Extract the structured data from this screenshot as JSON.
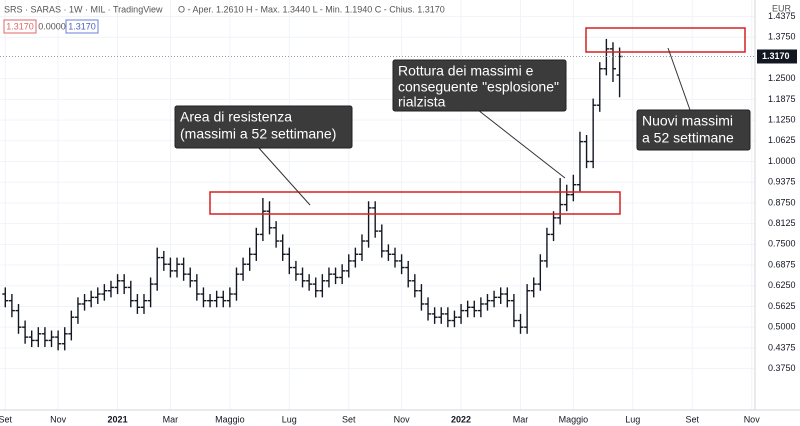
{
  "header": {
    "symbol": "SRS · SARAS · 1W · MIL · TradingView",
    "ohlc": "O - Aper. 1.2610 H - Max. 1.3440 L - Min. 1.1940 C - Chius. 1.3170",
    "badges": [
      "1.3170",
      "0.0000",
      "1.3170"
    ]
  },
  "chart_data": {
    "type": "ohlc",
    "currency": "EUR",
    "last_price": {
      "value": 1.317,
      "label": "1.3170"
    },
    "color": "#131722",
    "x": [
      0,
      1,
      2,
      3,
      4,
      5,
      6,
      7,
      8,
      9,
      10,
      11,
      12,
      13,
      14,
      15,
      16,
      17,
      18,
      19,
      20,
      21,
      22,
      23,
      24,
      25,
      26,
      27,
      28,
      29,
      30,
      31,
      32,
      33,
      34,
      35,
      36,
      37,
      38,
      39,
      40,
      41,
      42,
      43,
      44,
      45,
      46,
      47,
      48,
      49,
      50,
      51,
      52,
      53,
      54,
      55,
      56,
      57,
      58,
      59,
      60,
      61,
      62,
      63,
      64,
      65,
      66,
      67,
      68,
      69,
      70,
      71,
      72,
      73,
      74,
      75,
      76,
      77,
      78,
      79,
      80,
      81,
      82,
      83,
      84,
      85,
      86,
      87,
      88,
      89,
      90,
      91,
      92,
      93
    ],
    "open": [
      0.6,
      0.58,
      0.55,
      0.5,
      0.47,
      0.46,
      0.48,
      0.46,
      0.47,
      0.45,
      0.48,
      0.53,
      0.57,
      0.58,
      0.59,
      0.6,
      0.61,
      0.62,
      0.64,
      0.62,
      0.58,
      0.56,
      0.58,
      0.63,
      0.71,
      0.69,
      0.67,
      0.69,
      0.66,
      0.64,
      0.6,
      0.58,
      0.58,
      0.59,
      0.58,
      0.6,
      0.66,
      0.69,
      0.72,
      0.78,
      0.85,
      0.8,
      0.76,
      0.72,
      0.68,
      0.66,
      0.64,
      0.63,
      0.61,
      0.64,
      0.66,
      0.65,
      0.67,
      0.7,
      0.72,
      0.76,
      0.86,
      0.79,
      0.73,
      0.72,
      0.7,
      0.68,
      0.64,
      0.61,
      0.57,
      0.54,
      0.53,
      0.54,
      0.52,
      0.53,
      0.55,
      0.56,
      0.55,
      0.57,
      0.58,
      0.59,
      0.6,
      0.58,
      0.52,
      0.5,
      0.61,
      0.63,
      0.7,
      0.78,
      0.83,
      0.87,
      0.9,
      0.93,
      1.06,
      1.0,
      1.17,
      1.28,
      1.34,
      1.261
    ],
    "high": [
      0.62,
      0.6,
      0.57,
      0.52,
      0.49,
      0.5,
      0.5,
      0.49,
      0.49,
      0.5,
      0.55,
      0.59,
      0.6,
      0.61,
      0.62,
      0.63,
      0.64,
      0.66,
      0.66,
      0.64,
      0.6,
      0.6,
      0.65,
      0.74,
      0.73,
      0.71,
      0.71,
      0.71,
      0.68,
      0.66,
      0.62,
      0.6,
      0.61,
      0.61,
      0.62,
      0.68,
      0.71,
      0.74,
      0.8,
      0.89,
      0.88,
      0.82,
      0.78,
      0.74,
      0.7,
      0.68,
      0.66,
      0.65,
      0.66,
      0.68,
      0.68,
      0.69,
      0.72,
      0.74,
      0.78,
      0.88,
      0.88,
      0.81,
      0.75,
      0.74,
      0.72,
      0.7,
      0.66,
      0.63,
      0.59,
      0.56,
      0.56,
      0.56,
      0.55,
      0.57,
      0.58,
      0.58,
      0.59,
      0.6,
      0.61,
      0.62,
      0.62,
      0.6,
      0.54,
      0.63,
      0.65,
      0.72,
      0.8,
      0.85,
      0.95,
      0.93,
      0.96,
      1.09,
      1.08,
      1.19,
      1.3,
      1.37,
      1.36,
      1.344
    ],
    "low": [
      0.56,
      0.53,
      0.48,
      0.45,
      0.44,
      0.44,
      0.44,
      0.44,
      0.43,
      0.43,
      0.46,
      0.51,
      0.55,
      0.56,
      0.57,
      0.58,
      0.59,
      0.6,
      0.6,
      0.56,
      0.54,
      0.54,
      0.56,
      0.61,
      0.67,
      0.65,
      0.65,
      0.64,
      0.62,
      0.58,
      0.56,
      0.56,
      0.56,
      0.56,
      0.56,
      0.58,
      0.64,
      0.67,
      0.7,
      0.76,
      0.78,
      0.74,
      0.7,
      0.66,
      0.64,
      0.62,
      0.61,
      0.59,
      0.59,
      0.62,
      0.63,
      0.63,
      0.65,
      0.68,
      0.7,
      0.74,
      0.77,
      0.71,
      0.7,
      0.68,
      0.66,
      0.62,
      0.59,
      0.55,
      0.52,
      0.51,
      0.51,
      0.5,
      0.5,
      0.51,
      0.53,
      0.53,
      0.53,
      0.55,
      0.56,
      0.57,
      0.56,
      0.5,
      0.48,
      0.48,
      0.59,
      0.61,
      0.68,
      0.76,
      0.81,
      0.85,
      0.88,
      0.91,
      0.98,
      0.98,
      1.15,
      1.26,
      1.24,
      1.194
    ],
    "close": [
      0.58,
      0.55,
      0.5,
      0.47,
      0.46,
      0.48,
      0.46,
      0.47,
      0.45,
      0.48,
      0.53,
      0.57,
      0.58,
      0.59,
      0.6,
      0.61,
      0.62,
      0.64,
      0.62,
      0.58,
      0.56,
      0.58,
      0.63,
      0.71,
      0.69,
      0.67,
      0.69,
      0.66,
      0.64,
      0.6,
      0.58,
      0.58,
      0.59,
      0.58,
      0.6,
      0.66,
      0.69,
      0.72,
      0.78,
      0.85,
      0.8,
      0.76,
      0.72,
      0.68,
      0.66,
      0.64,
      0.63,
      0.61,
      0.64,
      0.66,
      0.65,
      0.67,
      0.7,
      0.72,
      0.76,
      0.86,
      0.79,
      0.73,
      0.72,
      0.7,
      0.68,
      0.64,
      0.61,
      0.57,
      0.54,
      0.53,
      0.54,
      0.52,
      0.53,
      0.55,
      0.56,
      0.55,
      0.57,
      0.58,
      0.59,
      0.6,
      0.58,
      0.52,
      0.5,
      0.61,
      0.63,
      0.7,
      0.78,
      0.83,
      0.87,
      0.9,
      0.93,
      1.06,
      1.0,
      1.17,
      1.28,
      1.34,
      1.28,
      1.317
    ],
    "xlim": [
      -0.8,
      113.5
    ],
    "xticks": [
      {
        "value": 0,
        "label": "Set"
      },
      {
        "value": 8,
        "label": "Nov"
      },
      {
        "value": 17,
        "label": "2021"
      },
      {
        "value": 25,
        "label": "Mar"
      },
      {
        "value": 34,
        "label": "Maggio"
      },
      {
        "value": 43,
        "label": "Lug"
      },
      {
        "value": 52,
        "label": "Set"
      },
      {
        "value": 60,
        "label": "Nov"
      },
      {
        "value": 69,
        "label": "2022"
      },
      {
        "value": 78,
        "label": "Mar"
      },
      {
        "value": 86,
        "label": "Maggio"
      },
      {
        "value": 95,
        "label": "Lug"
      },
      {
        "value": 104,
        "label": "Set"
      },
      {
        "value": 113,
        "label": "Nov"
      }
    ],
    "ylim": [
      0.25,
      1.4875
    ],
    "yticks": [
      {
        "value": 1.4375,
        "label": "1.4375"
      },
      {
        "value": 1.375,
        "label": "1.3750"
      },
      {
        "value": 1.25,
        "label": "1.2500"
      },
      {
        "value": 1.1875,
        "label": "1.1875"
      },
      {
        "value": 1.125,
        "label": "1.1250"
      },
      {
        "value": 1.0625,
        "label": "1.0625"
      },
      {
        "value": 1,
        "label": "1.0000"
      },
      {
        "value": 0.9375,
        "label": "0.9375"
      },
      {
        "value": 0.875,
        "label": "0.8750"
      },
      {
        "value": 0.8125,
        "label": "0.8125"
      },
      {
        "value": 0.75,
        "label": "0.7500"
      },
      {
        "value": 0.6875,
        "label": "0.6875"
      },
      {
        "value": 0.625,
        "label": "0.6250"
      },
      {
        "value": 0.5625,
        "label": "0.5625"
      },
      {
        "value": 0.5,
        "label": "0.5000"
      },
      {
        "value": 0.4375,
        "label": "0.4375"
      },
      {
        "value": 0.375,
        "label": "0.3750"
      }
    ],
    "grid": true,
    "annotations": [
      {
        "lines": [
          "Area di resistenza",
          "(massimi a 52 settimane)"
        ]
      },
      {
        "lines": [
          "Rottura dei massimi e",
          "conseguente \"esplosione\"",
          "rialzista"
        ]
      },
      {
        "lines": [
          "Nuovi massimi",
          "a 52 settimane"
        ]
      }
    ]
  }
}
